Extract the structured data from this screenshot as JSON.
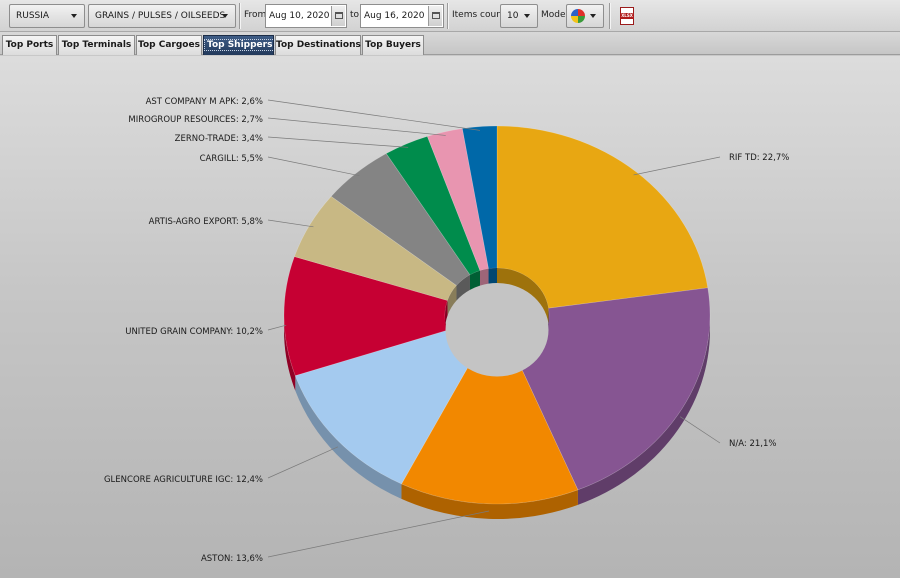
{
  "toolbar": {
    "country": "RUSSIA",
    "commodity": "GRAINS / PULSES / OILSEEDS",
    "from_label": "From",
    "from_date": "Aug 10, 2020",
    "to_label": "to",
    "to_date": "Aug 16, 2020",
    "items_count_label": "Items count:",
    "items_count": "10",
    "mode_label": "Mode:",
    "export_icon_text": "XLSX"
  },
  "tabs": [
    {
      "label": "Top Ports",
      "active": false
    },
    {
      "label": "Top Terminals",
      "active": false
    },
    {
      "label": "Top Cargoes",
      "active": false
    },
    {
      "label": "Top Shippers",
      "active": true
    },
    {
      "label": "Top Destinations",
      "active": false
    },
    {
      "label": "Top Buyers",
      "active": false
    }
  ],
  "chart_data": {
    "type": "pie",
    "style": "3d-donut",
    "labels_format": "{name}: {value}%",
    "slices": [
      {
        "name": "RIF TD",
        "value": 22.7,
        "label": "RIF TD: 22,7%",
        "color": "#e8a712"
      },
      {
        "name": "N/A",
        "value": 21.1,
        "label": "N/A: 21,1%",
        "color": "#865592"
      },
      {
        "name": "ASTON",
        "value": 13.6,
        "label": "ASTON: 13,6%",
        "color": "#f28800"
      },
      {
        "name": "GLENCORE AGRICULTURE IGC",
        "value": 12.4,
        "label": "GLENCORE AGRICULTURE IGC: 12,4%",
        "color": "#a4caef"
      },
      {
        "name": "UNITED GRAIN COMPANY",
        "value": 10.2,
        "label": "UNITED GRAIN COMPANY: 10,2%",
        "color": "#c60033"
      },
      {
        "name": "ARTIS-AGRO EXPORT",
        "value": 5.8,
        "label": "ARTIS-AGRO EXPORT: 5,8%",
        "color": "#c8b884"
      },
      {
        "name": "CARGILL",
        "value": 5.5,
        "label": "CARGILL: 5,5%",
        "color": "#848484"
      },
      {
        "name": "ZERNO-TRADE",
        "value": 3.4,
        "label": "ZERNO-TRADE: 3,4%",
        "color": "#008c4c"
      },
      {
        "name": "MIROGROUP RESOURCES",
        "value": 2.7,
        "label": "MIROGROUP RESOURCES: 2,7%",
        "color": "#e895b0"
      },
      {
        "name": "AST COMPANY M APK",
        "value": 2.6,
        "label": "AST COMPANY M APK: 2,6%",
        "color": "#0068a8"
      }
    ]
  }
}
